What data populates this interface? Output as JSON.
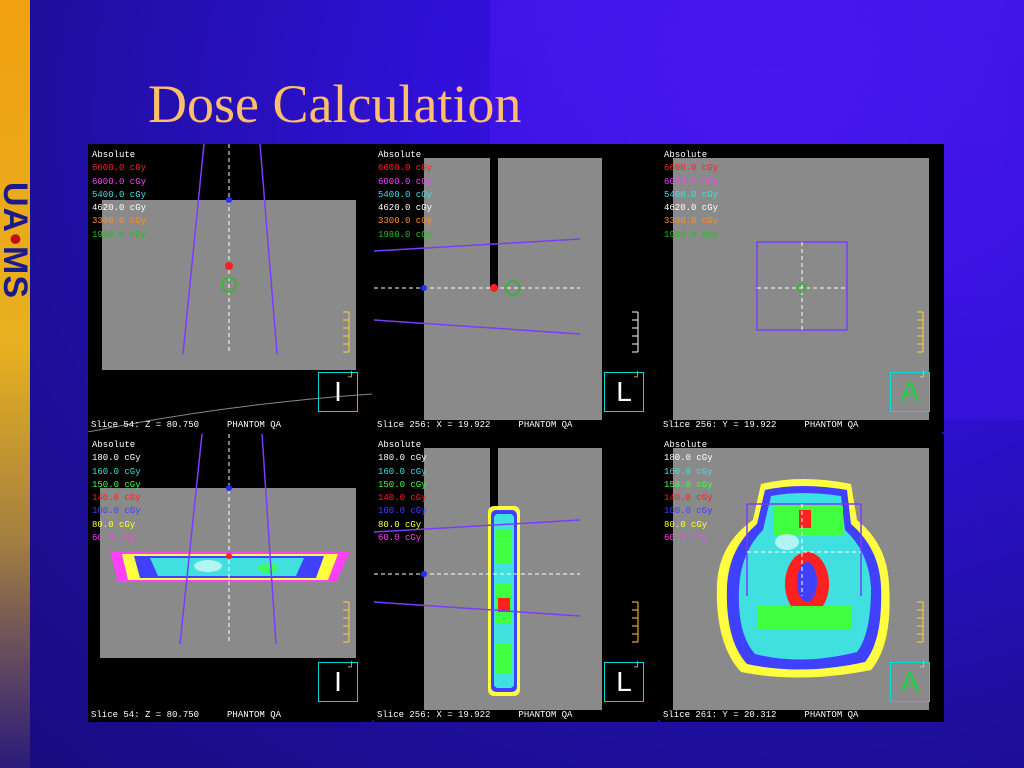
{
  "title": "Dose Calculation",
  "logo": {
    "left": "UA",
    "dot": "•",
    "right": "MS"
  },
  "colors": {
    "background": "#1a0f8a",
    "title": "#ffbf6a",
    "accent_bar": "#f0a010",
    "beam_line": "#7a3cff",
    "crosshair": "#ffffff"
  },
  "panels": [
    {
      "legend": [
        {
          "text": "Absolute",
          "color": "#ffffff"
        },
        {
          "text": "6600.0 cGy",
          "color": "#ff2020"
        },
        {
          "text": "6000.0 cGy",
          "color": "#ff40ff"
        },
        {
          "text": "5400.0 cGy",
          "color": "#40e0e0"
        },
        {
          "text": "4620.0 cGy",
          "color": "#ffffff"
        },
        {
          "text": "3300.0 cGy",
          "color": "#ff9020"
        },
        {
          "text": "1980.0 cGy",
          "color": "#20c020"
        }
      ],
      "slice": "Slice 54: Z = 80.750",
      "label": "PHANTOM QA",
      "orientation": "I",
      "orientation_icon": "inferior-view-icon"
    },
    {
      "legend": [
        {
          "text": "Absolute",
          "color": "#ffffff"
        },
        {
          "text": "6600.0 cGy",
          "color": "#ff2020"
        },
        {
          "text": "6000.0 cGy",
          "color": "#ff40ff"
        },
        {
          "text": "5400.0 cGy",
          "color": "#40e0e0"
        },
        {
          "text": "4620.0 cGy",
          "color": "#ffffff"
        },
        {
          "text": "3300.0 cGy",
          "color": "#ff9020"
        },
        {
          "text": "1980.0 cGy",
          "color": "#20c020"
        }
      ],
      "slice": "Slice 256: X = 19.922",
      "label": "PHANTOM QA",
      "orientation": "L",
      "orientation_icon": "left-view-icon"
    },
    {
      "legend": [
        {
          "text": "Absolute",
          "color": "#ffffff"
        },
        {
          "text": "6600.0 cGy",
          "color": "#ff2020"
        },
        {
          "text": "6000.0 cGy",
          "color": "#ff40ff"
        },
        {
          "text": "5400.0 cGy",
          "color": "#40e0e0"
        },
        {
          "text": "4620.0 cGy",
          "color": "#ffffff"
        },
        {
          "text": "3300.0 cGy",
          "color": "#ff9020"
        },
        {
          "text": "1980.0 cGy",
          "color": "#20c020"
        }
      ],
      "slice": "Slice 256: Y = 19.922",
      "label": "PHANTOM QA",
      "orientation": "A",
      "orientation_icon": "anterior-view-icon"
    },
    {
      "legend": [
        {
          "text": "Absolute",
          "color": "#ffffff"
        },
        {
          "text": "180.0 cGy",
          "color": "#ffffff"
        },
        {
          "text": "160.0 cGy",
          "color": "#40e0e0"
        },
        {
          "text": "150.0 cGy",
          "color": "#40ff40"
        },
        {
          "text": "140.0 cGy",
          "color": "#ff2020"
        },
        {
          "text": "100.0 cGy",
          "color": "#4040ff"
        },
        {
          "text": "80.0 cGy",
          "color": "#ffff40"
        },
        {
          "text": "60.0 cGy",
          "color": "#ff40ff"
        }
      ],
      "slice": "Slice 54: Z = 80.750",
      "label": "PHANTOM QA",
      "orientation": "I",
      "orientation_icon": "inferior-view-icon"
    },
    {
      "legend": [
        {
          "text": "Absolute",
          "color": "#ffffff"
        },
        {
          "text": "180.0 cGy",
          "color": "#ffffff"
        },
        {
          "text": "160.0 cGy",
          "color": "#40e0e0"
        },
        {
          "text": "150.0 cGy",
          "color": "#40ff40"
        },
        {
          "text": "140.0 cGy",
          "color": "#ff2020"
        },
        {
          "text": "100.0 cGy",
          "color": "#4040ff"
        },
        {
          "text": "80.0 cGy",
          "color": "#ffff40"
        },
        {
          "text": "60.0 cGy",
          "color": "#ff40ff"
        }
      ],
      "slice": "Slice 256: X = 19.922",
      "label": "PHANTOM QA",
      "orientation": "L",
      "orientation_icon": "left-view-icon"
    },
    {
      "legend": [
        {
          "text": "Absolute",
          "color": "#ffffff"
        },
        {
          "text": "180.0 cGy",
          "color": "#ffffff"
        },
        {
          "text": "160.0 cGy",
          "color": "#40e0e0"
        },
        {
          "text": "150.0 cGy",
          "color": "#40ff40"
        },
        {
          "text": "140.0 cGy",
          "color": "#ff2020"
        },
        {
          "text": "100.0 cGy",
          "color": "#4040ff"
        },
        {
          "text": "80.0 cGy",
          "color": "#ffff40"
        },
        {
          "text": "60.0 cGy",
          "color": "#ff40ff"
        }
      ],
      "slice": "Slice 261: Y = 20.312",
      "label": "PHANTOM QA",
      "orientation": "A",
      "orientation_icon": "anterior-view-icon"
    }
  ]
}
